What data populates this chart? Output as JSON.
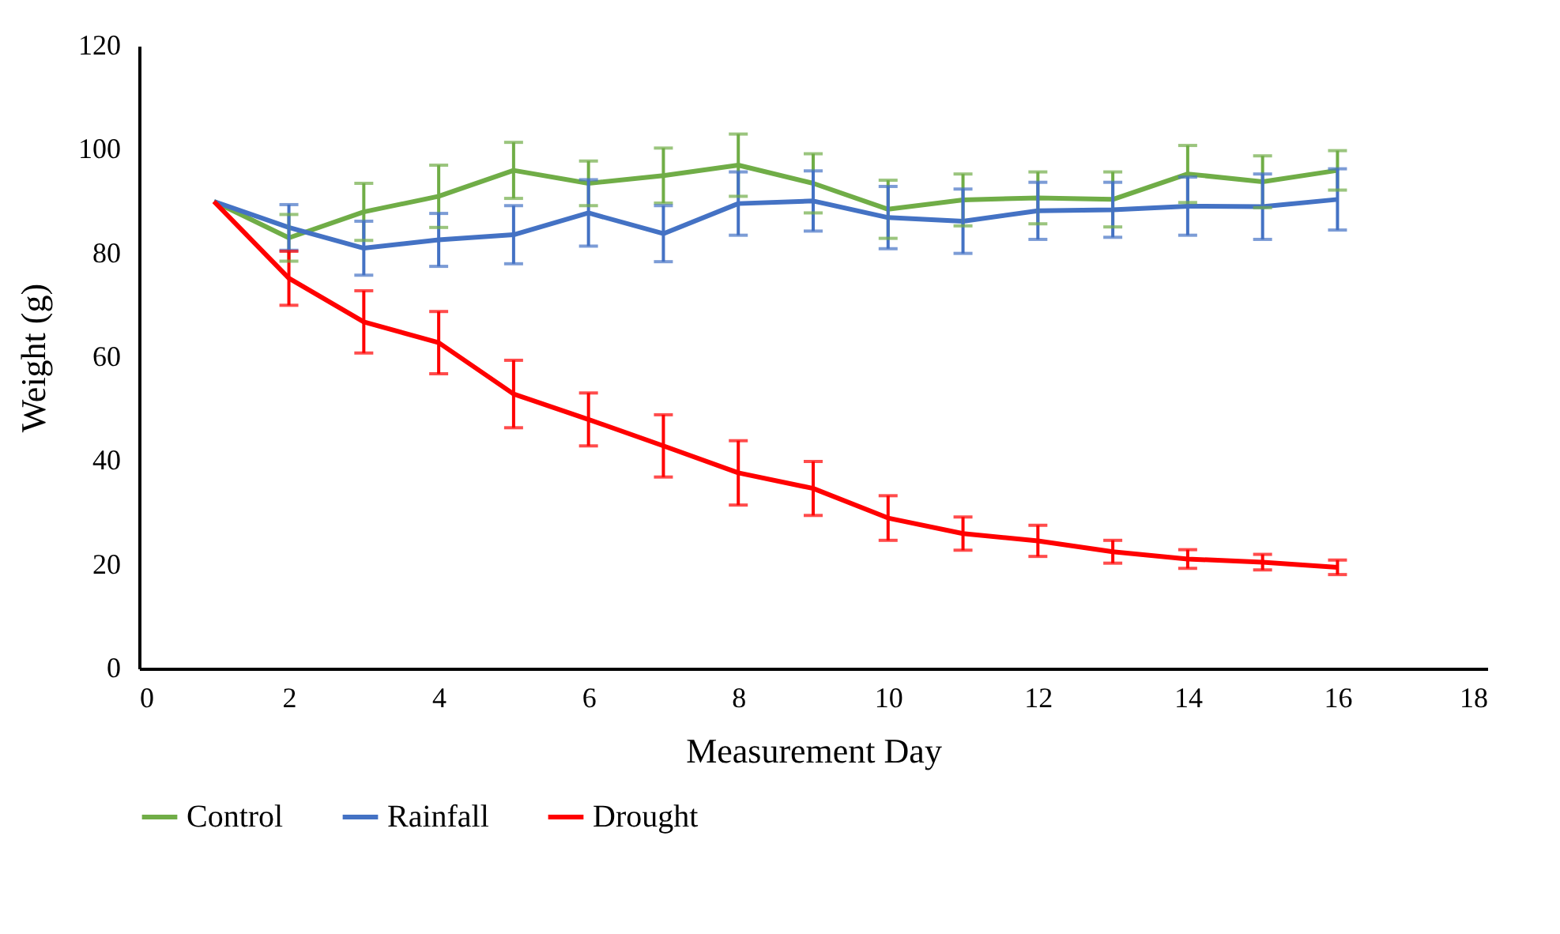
{
  "chart_data": {
    "type": "line",
    "xlabel": "Measurement Day",
    "ylabel": "Weight (g)",
    "x": [
      1,
      2,
      3,
      4,
      5,
      6,
      7,
      8,
      9,
      10,
      11,
      12,
      13,
      14,
      15,
      16
    ],
    "xlim": [
      0,
      18
    ],
    "xticks": [
      0,
      2,
      4,
      6,
      8,
      10,
      12,
      14,
      16,
      18
    ],
    "ylim": [
      0,
      120
    ],
    "yticks": [
      0,
      20,
      40,
      60,
      80,
      100,
      120
    ],
    "grid": false,
    "legend": "bottom",
    "marker": "none",
    "line_style": "solid",
    "series": [
      {
        "name": "Control",
        "color": "#70ad47",
        "values": [
          90,
          83,
          88,
          91,
          96,
          93.5,
          95,
          97,
          93.5,
          88.5,
          90.3,
          90.7,
          90.4,
          95.3,
          93.8,
          96
        ],
        "errors": [
          null,
          4.5,
          5.5,
          6,
          5.4,
          4.3,
          5.3,
          6,
          5.7,
          5.6,
          5,
          5,
          5.3,
          5.5,
          5,
          3.8
        ]
      },
      {
        "name": "Rainfall",
        "color": "#4472c4",
        "values": [
          90,
          85,
          81,
          82.6,
          83.6,
          87.8,
          83.8,
          89.6,
          90.1,
          86.9,
          86.2,
          88.2,
          88.4,
          89.1,
          89,
          90.4
        ],
        "errors": [
          null,
          4.4,
          5.2,
          5.1,
          5.6,
          6.4,
          5.4,
          6.1,
          5.8,
          6,
          6.2,
          5.5,
          5.3,
          5.6,
          6.3,
          5.9
        ]
      },
      {
        "name": "Drought",
        "color": "#ff0000",
        "values": [
          90,
          75.2,
          66.8,
          62.8,
          52.9,
          48,
          42.9,
          37.7,
          34.7,
          29,
          26,
          24.6,
          22.5,
          21.1,
          20.5,
          19.5
        ],
        "errors": [
          null,
          5.2,
          6,
          6,
          6.5,
          5.1,
          6,
          6.2,
          5.2,
          4.3,
          3.2,
          3,
          2.2,
          1.8,
          1.5,
          1.4
        ]
      }
    ]
  }
}
